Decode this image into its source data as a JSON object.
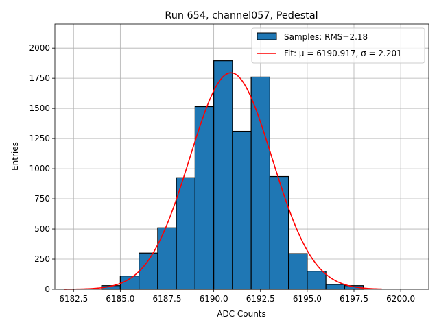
{
  "chart_data": {
    "type": "bar",
    "title": "Run 654, channel057, Pedestal",
    "xlabel": "ADC Counts",
    "ylabel": "Entries",
    "xlim": [
      6181.5,
      6201.5
    ],
    "ylim": [
      0,
      2200
    ],
    "grid": true,
    "legend_position": "top-right",
    "x_ticks": [
      6182.5,
      6185.0,
      6187.5,
      6190.0,
      6192.5,
      6195.0,
      6197.5,
      6200.0
    ],
    "x_tick_labels": [
      "6182.5",
      "6185.0",
      "6187.5",
      "6190.0",
      "6192.5",
      "6195.0",
      "6197.5",
      "6200.0"
    ],
    "y_ticks": [
      0,
      250,
      500,
      750,
      1000,
      1250,
      1500,
      1750,
      2000
    ],
    "y_tick_labels": [
      "0",
      "250",
      "500",
      "750",
      "1000",
      "1250",
      "1500",
      "1750",
      "2000"
    ],
    "histogram": {
      "name": "Samples: RMS=2.18",
      "bin_edges": [
        6184,
        6185,
        6186,
        6187,
        6188,
        6189,
        6190,
        6191,
        6192,
        6193,
        6194,
        6195,
        6196,
        6197,
        6198
      ],
      "counts": [
        30,
        110,
        300,
        510,
        925,
        1515,
        1895,
        1310,
        1760,
        935,
        295,
        150,
        40,
        30
      ],
      "color": "#1f77b4"
    },
    "fit": {
      "name": "Fit: μ = 6190.917, σ = 2.201",
      "mu": 6190.917,
      "sigma": 2.201,
      "amplitude": 1795,
      "x_range": [
        6182,
        6199
      ],
      "color": "#ff0000"
    }
  }
}
